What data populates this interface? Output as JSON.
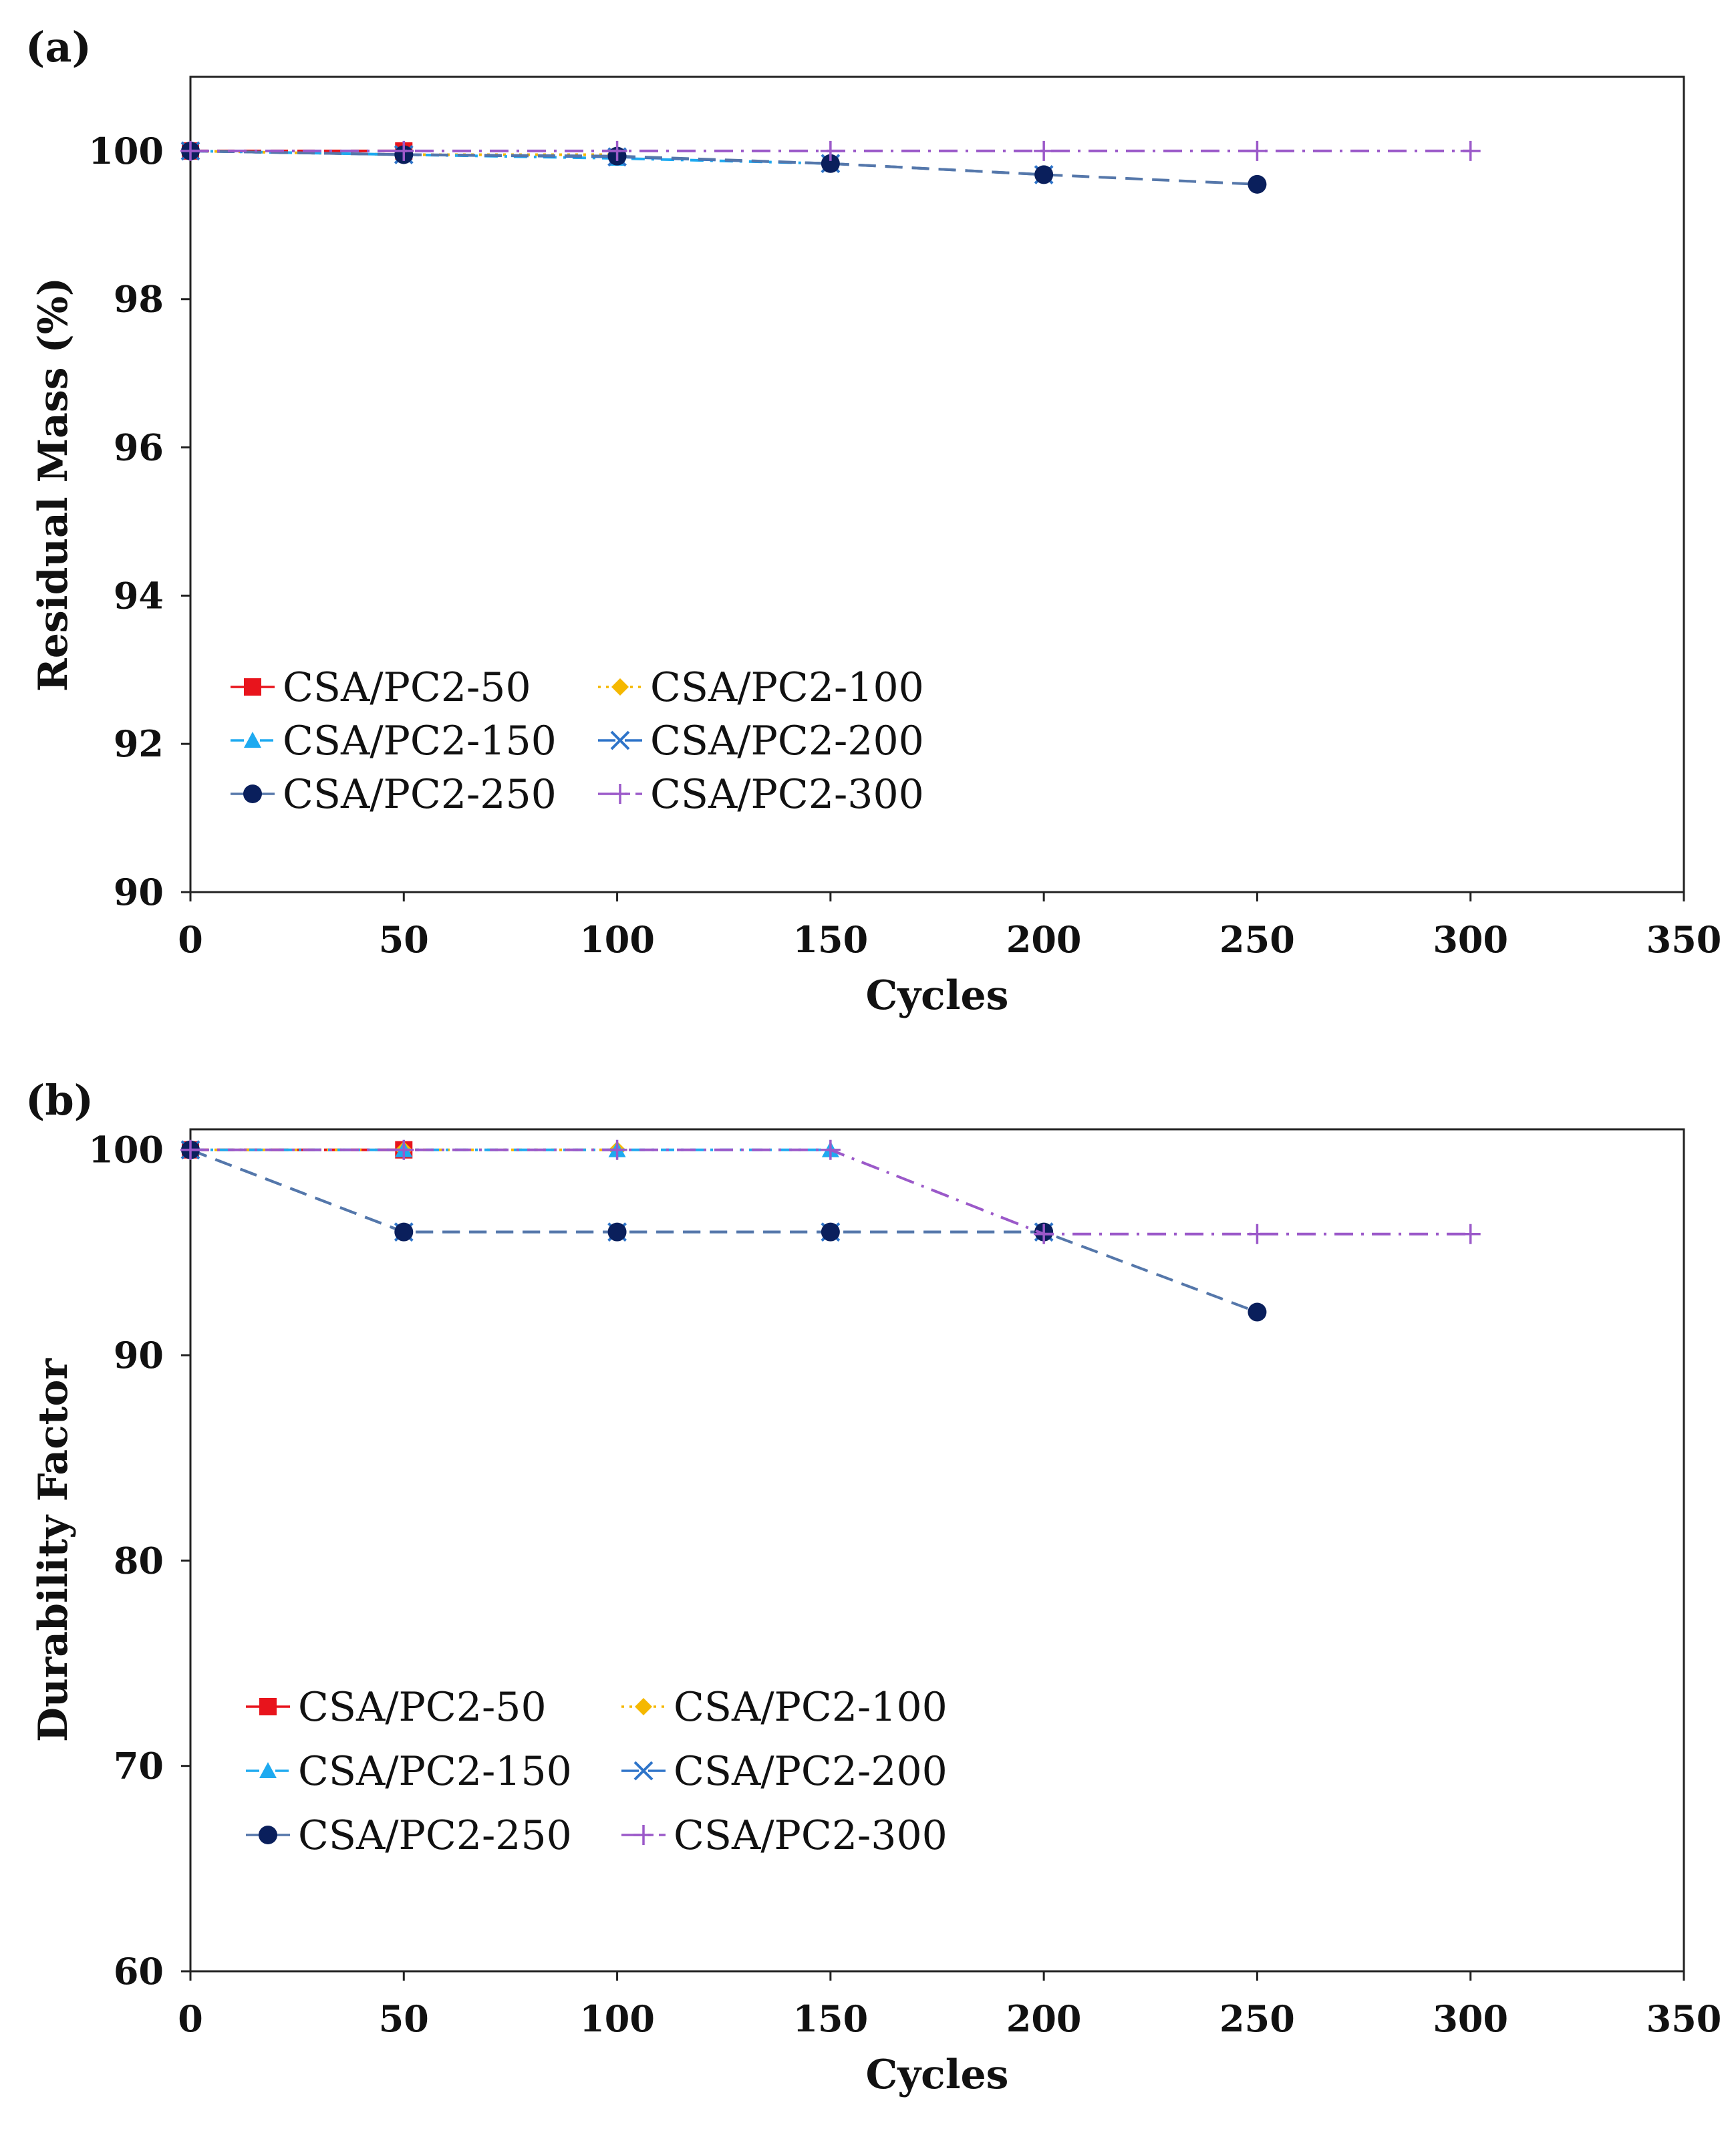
{
  "chart_data": [
    {
      "type": "line",
      "panel_label": "(a)",
      "xlabel": "Cycles",
      "ylabel": "Residual Mass (%)",
      "xlim": [
        0,
        350
      ],
      "ylim": [
        90,
        101
      ],
      "x_ticks": [
        0,
        50,
        100,
        150,
        200,
        250,
        300,
        350
      ],
      "y_ticks": [
        90,
        92,
        94,
        96,
        98,
        100
      ],
      "grid": false,
      "legend_position": "lower-left",
      "series": [
        {
          "name": "CSA/PC2-50",
          "marker": "square",
          "dash": "long-dash",
          "color": "#e8141c",
          "x": [
            0,
            50
          ],
          "y": [
            100,
            100
          ]
        },
        {
          "name": "CSA/PC2-100",
          "marker": "diamond",
          "dash": "dot",
          "color": "#f5b800",
          "x": [
            0,
            50,
            100
          ],
          "y": [
            100,
            99.95,
            99.95
          ]
        },
        {
          "name": "CSA/PC2-150",
          "marker": "triangle",
          "dash": "dash-dot",
          "color": "#1eaaf0",
          "x": [
            0,
            50,
            100,
            150
          ],
          "y": [
            100,
            99.95,
            99.9,
            99.83
          ]
        },
        {
          "name": "CSA/PC2-200",
          "marker": "x",
          "dash": "long-dash",
          "color": "#2e74c9",
          "x": [
            0,
            50,
            100,
            150,
            200
          ],
          "y": [
            100,
            99.95,
            99.92,
            99.83,
            99.68
          ]
        },
        {
          "name": "CSA/PC2-250",
          "marker": "circle",
          "dash": "long-dash",
          "color": "#0a1f5c",
          "line_color": "#5577aa",
          "x": [
            0,
            50,
            100,
            150,
            200,
            250
          ],
          "y": [
            100,
            99.95,
            99.93,
            99.83,
            99.68,
            99.55
          ]
        },
        {
          "name": "CSA/PC2-300",
          "marker": "plus",
          "dash": "long-dash-dot",
          "color": "#9b59c9",
          "x": [
            0,
            50,
            100,
            150,
            200,
            250,
            300
          ],
          "y": [
            100,
            100,
            100,
            100,
            100,
            100,
            100
          ]
        }
      ]
    },
    {
      "type": "line",
      "panel_label": "(b)",
      "xlabel": "Cycles",
      "ylabel": "Durability Factor",
      "xlim": [
        0,
        350
      ],
      "ylim": [
        60,
        101
      ],
      "x_ticks": [
        0,
        50,
        100,
        150,
        200,
        250,
        300,
        350
      ],
      "y_ticks": [
        60,
        70,
        80,
        90,
        100
      ],
      "grid": false,
      "legend_position": "lower-left",
      "series": [
        {
          "name": "CSA/PC2-50",
          "marker": "square",
          "dash": "long-dash",
          "color": "#e8141c",
          "x": [
            0,
            50
          ],
          "y": [
            100,
            100
          ]
        },
        {
          "name": "CSA/PC2-100",
          "marker": "diamond",
          "dash": "dot",
          "color": "#f5b800",
          "x": [
            0,
            50,
            100
          ],
          "y": [
            100,
            100,
            100
          ]
        },
        {
          "name": "CSA/PC2-150",
          "marker": "triangle",
          "dash": "dash-dot",
          "color": "#1eaaf0",
          "x": [
            0,
            50,
            100,
            150
          ],
          "y": [
            100,
            100,
            100,
            100
          ]
        },
        {
          "name": "CSA/PC2-200",
          "marker": "x",
          "dash": "long-dash",
          "color": "#2e74c9",
          "x": [
            0,
            50,
            100,
            150,
            200
          ],
          "y": [
            100,
            96,
            96,
            96,
            96
          ]
        },
        {
          "name": "CSA/PC2-250",
          "marker": "circle",
          "dash": "long-dash",
          "color": "#0a1f5c",
          "line_color": "#5577aa",
          "x": [
            0,
            50,
            100,
            150,
            200,
            250
          ],
          "y": [
            100,
            96,
            96,
            96,
            96,
            92.1
          ]
        },
        {
          "name": "CSA/PC2-300",
          "marker": "plus",
          "dash": "long-dash-dot",
          "color": "#9b59c9",
          "x": [
            0,
            50,
            100,
            150,
            200,
            250,
            300
          ],
          "y": [
            100,
            100,
            100,
            100,
            95.9,
            95.9,
            95.9
          ]
        }
      ]
    }
  ]
}
